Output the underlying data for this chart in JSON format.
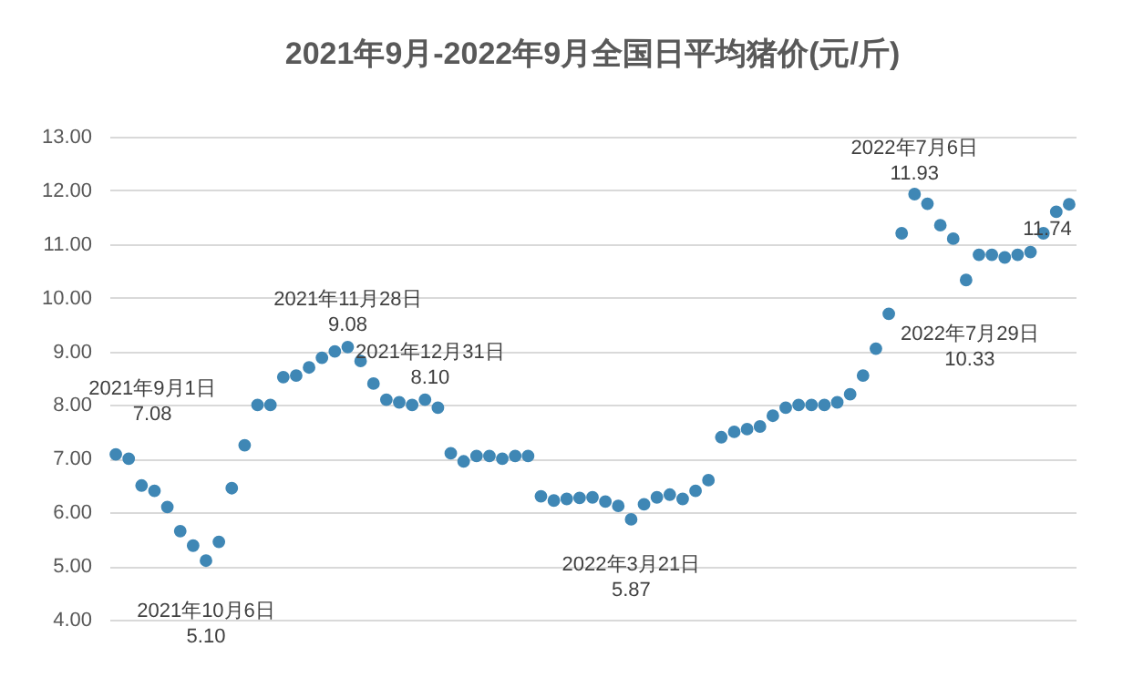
{
  "chart_data": {
    "type": "scatter",
    "title": "2021年9月-2022年9月全国日平均猪价(元/斤)",
    "categories": [
      null,
      null,
      null,
      null,
      null,
      null,
      null,
      null,
      null,
      null,
      null,
      null,
      null,
      null,
      null,
      null,
      null,
      null,
      null,
      null,
      null,
      null,
      null,
      null,
      null,
      null,
      null,
      null,
      null,
      null,
      null,
      null,
      null,
      null,
      null,
      null,
      null,
      null,
      null,
      null,
      null,
      null,
      null,
      null,
      null,
      null,
      null,
      null,
      null,
      null,
      null,
      null,
      null,
      null,
      null,
      null,
      null,
      null,
      null,
      null,
      null,
      null,
      null,
      null,
      null,
      null,
      null,
      null,
      null,
      null,
      null,
      null,
      null,
      null,
      null
    ],
    "series": [
      {
        "color": "#3f87b5",
        "values": [
          7.08,
          7.0,
          6.5,
          6.4,
          6.1,
          5.65,
          5.38,
          5.1,
          5.45,
          6.45,
          7.25,
          8.0,
          8.0,
          8.52,
          8.55,
          8.7,
          8.88,
          9.0,
          9.08,
          8.82,
          8.4,
          8.1,
          8.05,
          8.0,
          8.1,
          7.95,
          7.1,
          6.95,
          7.05,
          7.05,
          7.0,
          7.05,
          7.05,
          6.3,
          6.22,
          6.25,
          6.27,
          6.28,
          6.2,
          6.12,
          5.87,
          6.15,
          6.28,
          6.33,
          6.25,
          6.4,
          6.6,
          7.4,
          7.5,
          7.55,
          7.6,
          7.8,
          7.95,
          8.0,
          8.0,
          8.0,
          8.05,
          8.2,
          8.55,
          9.05,
          9.7,
          11.2,
          11.93,
          11.75,
          11.35,
          11.1,
          10.33,
          10.8,
          10.8,
          10.75,
          10.8,
          10.85,
          11.2,
          11.6,
          11.74
        ]
      }
    ],
    "ylim": [
      4,
      13
    ],
    "yticks": [
      {
        "value": 4,
        "label": "4.00"
      },
      {
        "value": 5,
        "label": "5.00"
      },
      {
        "value": 6,
        "label": "6.00"
      },
      {
        "value": 7,
        "label": "7.00"
      },
      {
        "value": 8,
        "label": "8.00"
      },
      {
        "value": 9,
        "label": "9.00"
      },
      {
        "value": 10,
        "label": "10.00"
      },
      {
        "value": 11,
        "label": "11.00"
      },
      {
        "value": 12,
        "label": "12.00"
      },
      {
        "value": 13,
        "label": "13.00"
      }
    ],
    "tick_labels": "y",
    "grid": "y",
    "marker": "circle",
    "annotations": [
      "2021年9月1日\n7.08",
      {
        "text": "2021年10月6日\n5.10",
        "y": 5.1
      },
      {
        "text": "2021年11月28日\n9.08",
        "y": 9.08
      },
      {
        "text": "2021年12月31日\n8.10",
        "y": 8.1
      },
      {
        "text": "2022年3月21日\n5.87",
        "y": 5.87
      },
      {
        "text": "2022年7月6日\n11.93",
        "y": 11.93
      },
      {
        "text": "2022年7月29日\n10.33",
        "y": 10.33
      },
      {
        "text": "11.74",
        "y": 11.74
      }
    ]
  }
}
